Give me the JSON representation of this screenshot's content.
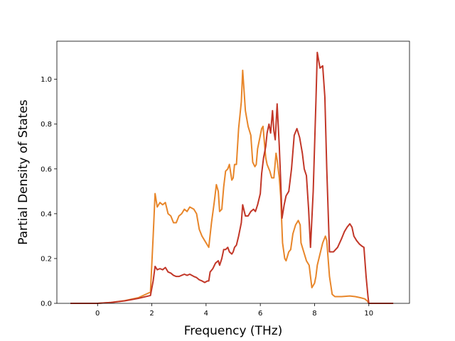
{
  "chart_data": {
    "type": "line",
    "title": "",
    "xlabel": "Frequency (THz)",
    "ylabel": "Partial Density of States",
    "xlim": [
      -1.5,
      11.5
    ],
    "ylim": [
      0.0,
      1.17
    ],
    "xticks": [
      0,
      2,
      4,
      6,
      8,
      10
    ],
    "yticks": [
      0.0,
      0.2,
      0.4,
      0.6,
      0.8,
      1.0
    ],
    "xtick_labels": [
      "0",
      "2",
      "4",
      "6",
      "8",
      "10"
    ],
    "ytick_labels": [
      "0.0",
      "0.2",
      "0.4",
      "0.6",
      "0.8",
      "1.0"
    ],
    "grid": false,
    "series": [
      {
        "color": "#e8862a",
        "points": [
          [
            -1.0,
            0.0
          ],
          [
            0.0,
            0.0
          ],
          [
            0.5,
            0.004
          ],
          [
            1.0,
            0.012
          ],
          [
            1.5,
            0.025
          ],
          [
            1.95,
            0.05
          ],
          [
            2.05,
            0.3
          ],
          [
            2.12,
            0.49
          ],
          [
            2.2,
            0.43
          ],
          [
            2.3,
            0.45
          ],
          [
            2.4,
            0.44
          ],
          [
            2.5,
            0.45
          ],
          [
            2.6,
            0.4
          ],
          [
            2.7,
            0.39
          ],
          [
            2.8,
            0.36
          ],
          [
            2.9,
            0.36
          ],
          [
            3.0,
            0.39
          ],
          [
            3.1,
            0.4
          ],
          [
            3.2,
            0.42
          ],
          [
            3.3,
            0.41
          ],
          [
            3.4,
            0.43
          ],
          [
            3.55,
            0.42
          ],
          [
            3.65,
            0.4
          ],
          [
            3.75,
            0.33
          ],
          [
            3.85,
            0.3
          ],
          [
            3.95,
            0.28
          ],
          [
            4.05,
            0.26
          ],
          [
            4.1,
            0.25
          ],
          [
            4.2,
            0.36
          ],
          [
            4.3,
            0.45
          ],
          [
            4.38,
            0.53
          ],
          [
            4.45,
            0.5
          ],
          [
            4.5,
            0.41
          ],
          [
            4.58,
            0.42
          ],
          [
            4.65,
            0.52
          ],
          [
            4.72,
            0.59
          ],
          [
            4.8,
            0.6
          ],
          [
            4.86,
            0.62
          ],
          [
            4.95,
            0.55
          ],
          [
            5.0,
            0.56
          ],
          [
            5.05,
            0.62
          ],
          [
            5.12,
            0.62
          ],
          [
            5.2,
            0.78
          ],
          [
            5.3,
            0.9
          ],
          [
            5.35,
            1.04
          ],
          [
            5.45,
            0.86
          ],
          [
            5.55,
            0.79
          ],
          [
            5.65,
            0.75
          ],
          [
            5.72,
            0.63
          ],
          [
            5.8,
            0.61
          ],
          [
            5.85,
            0.62
          ],
          [
            5.9,
            0.69
          ],
          [
            5.95,
            0.72
          ],
          [
            6.05,
            0.78
          ],
          [
            6.1,
            0.79
          ],
          [
            6.2,
            0.65
          ],
          [
            6.25,
            0.62
          ],
          [
            6.35,
            0.59
          ],
          [
            6.42,
            0.56
          ],
          [
            6.5,
            0.56
          ],
          [
            6.58,
            0.67
          ],
          [
            6.62,
            0.64
          ],
          [
            6.7,
            0.56
          ],
          [
            6.75,
            0.48
          ],
          [
            6.82,
            0.27
          ],
          [
            6.9,
            0.2
          ],
          [
            6.95,
            0.19
          ],
          [
            7.05,
            0.23
          ],
          [
            7.12,
            0.24
          ],
          [
            7.2,
            0.31
          ],
          [
            7.3,
            0.35
          ],
          [
            7.4,
            0.37
          ],
          [
            7.47,
            0.35
          ],
          [
            7.5,
            0.27
          ],
          [
            7.6,
            0.23
          ],
          [
            7.7,
            0.19
          ],
          [
            7.8,
            0.17
          ],
          [
            7.9,
            0.07
          ],
          [
            8.0,
            0.09
          ],
          [
            8.05,
            0.12
          ],
          [
            8.1,
            0.17
          ],
          [
            8.2,
            0.22
          ],
          [
            8.3,
            0.27
          ],
          [
            8.4,
            0.3
          ],
          [
            8.45,
            0.28
          ],
          [
            8.55,
            0.12
          ],
          [
            8.65,
            0.04
          ],
          [
            8.75,
            0.03
          ],
          [
            9.0,
            0.03
          ],
          [
            9.3,
            0.033
          ],
          [
            9.5,
            0.03
          ],
          [
            9.7,
            0.025
          ],
          [
            9.85,
            0.02
          ],
          [
            9.95,
            0.01
          ],
          [
            10.0,
            0.0
          ],
          [
            10.9,
            0.0
          ]
        ]
      },
      {
        "color": "#c23728",
        "points": [
          [
            -1.0,
            0.0
          ],
          [
            0.0,
            0.0
          ],
          [
            0.5,
            0.004
          ],
          [
            1.0,
            0.011
          ],
          [
            1.5,
            0.022
          ],
          [
            1.95,
            0.035
          ],
          [
            2.05,
            0.1
          ],
          [
            2.12,
            0.165
          ],
          [
            2.2,
            0.15
          ],
          [
            2.3,
            0.155
          ],
          [
            2.4,
            0.15
          ],
          [
            2.5,
            0.16
          ],
          [
            2.6,
            0.14
          ],
          [
            2.7,
            0.135
          ],
          [
            2.8,
            0.125
          ],
          [
            2.9,
            0.12
          ],
          [
            3.0,
            0.12
          ],
          [
            3.1,
            0.125
          ],
          [
            3.2,
            0.13
          ],
          [
            3.3,
            0.125
          ],
          [
            3.4,
            0.13
          ],
          [
            3.55,
            0.12
          ],
          [
            3.65,
            0.115
          ],
          [
            3.75,
            0.105
          ],
          [
            3.85,
            0.1
          ],
          [
            3.95,
            0.093
          ],
          [
            4.05,
            0.1
          ],
          [
            4.1,
            0.1
          ],
          [
            4.15,
            0.14
          ],
          [
            4.25,
            0.155
          ],
          [
            4.35,
            0.18
          ],
          [
            4.45,
            0.19
          ],
          [
            4.5,
            0.17
          ],
          [
            4.58,
            0.2
          ],
          [
            4.65,
            0.24
          ],
          [
            4.72,
            0.24
          ],
          [
            4.8,
            0.25
          ],
          [
            4.86,
            0.23
          ],
          [
            4.95,
            0.22
          ],
          [
            5.0,
            0.23
          ],
          [
            5.05,
            0.25
          ],
          [
            5.12,
            0.26
          ],
          [
            5.2,
            0.3
          ],
          [
            5.3,
            0.36
          ],
          [
            5.35,
            0.44
          ],
          [
            5.45,
            0.39
          ],
          [
            5.55,
            0.39
          ],
          [
            5.65,
            0.41
          ],
          [
            5.75,
            0.42
          ],
          [
            5.82,
            0.41
          ],
          [
            5.9,
            0.44
          ],
          [
            6.0,
            0.49
          ],
          [
            6.05,
            0.58
          ],
          [
            6.12,
            0.65
          ],
          [
            6.2,
            0.7
          ],
          [
            6.25,
            0.76
          ],
          [
            6.32,
            0.8
          ],
          [
            6.38,
            0.76
          ],
          [
            6.45,
            0.86
          ],
          [
            6.5,
            0.77
          ],
          [
            6.55,
            0.73
          ],
          [
            6.62,
            0.89
          ],
          [
            6.7,
            0.7
          ],
          [
            6.75,
            0.55
          ],
          [
            6.8,
            0.38
          ],
          [
            6.88,
            0.44
          ],
          [
            6.95,
            0.48
          ],
          [
            7.05,
            0.5
          ],
          [
            7.15,
            0.6
          ],
          [
            7.25,
            0.75
          ],
          [
            7.35,
            0.78
          ],
          [
            7.45,
            0.74
          ],
          [
            7.55,
            0.67
          ],
          [
            7.62,
            0.6
          ],
          [
            7.7,
            0.57
          ],
          [
            7.78,
            0.42
          ],
          [
            7.85,
            0.25
          ],
          [
            7.95,
            0.5
          ],
          [
            8.05,
            0.9
          ],
          [
            8.1,
            1.12
          ],
          [
            8.2,
            1.05
          ],
          [
            8.3,
            1.06
          ],
          [
            8.38,
            0.92
          ],
          [
            8.45,
            0.6
          ],
          [
            8.55,
            0.23
          ],
          [
            8.7,
            0.23
          ],
          [
            8.85,
            0.25
          ],
          [
            9.0,
            0.29
          ],
          [
            9.1,
            0.32
          ],
          [
            9.2,
            0.34
          ],
          [
            9.3,
            0.355
          ],
          [
            9.38,
            0.34
          ],
          [
            9.45,
            0.3
          ],
          [
            9.55,
            0.28
          ],
          [
            9.65,
            0.265
          ],
          [
            9.75,
            0.255
          ],
          [
            9.82,
            0.25
          ],
          [
            9.9,
            0.12
          ],
          [
            9.97,
            0.03
          ],
          [
            10.0,
            0.0
          ],
          [
            10.9,
            0.0
          ]
        ]
      }
    ]
  }
}
